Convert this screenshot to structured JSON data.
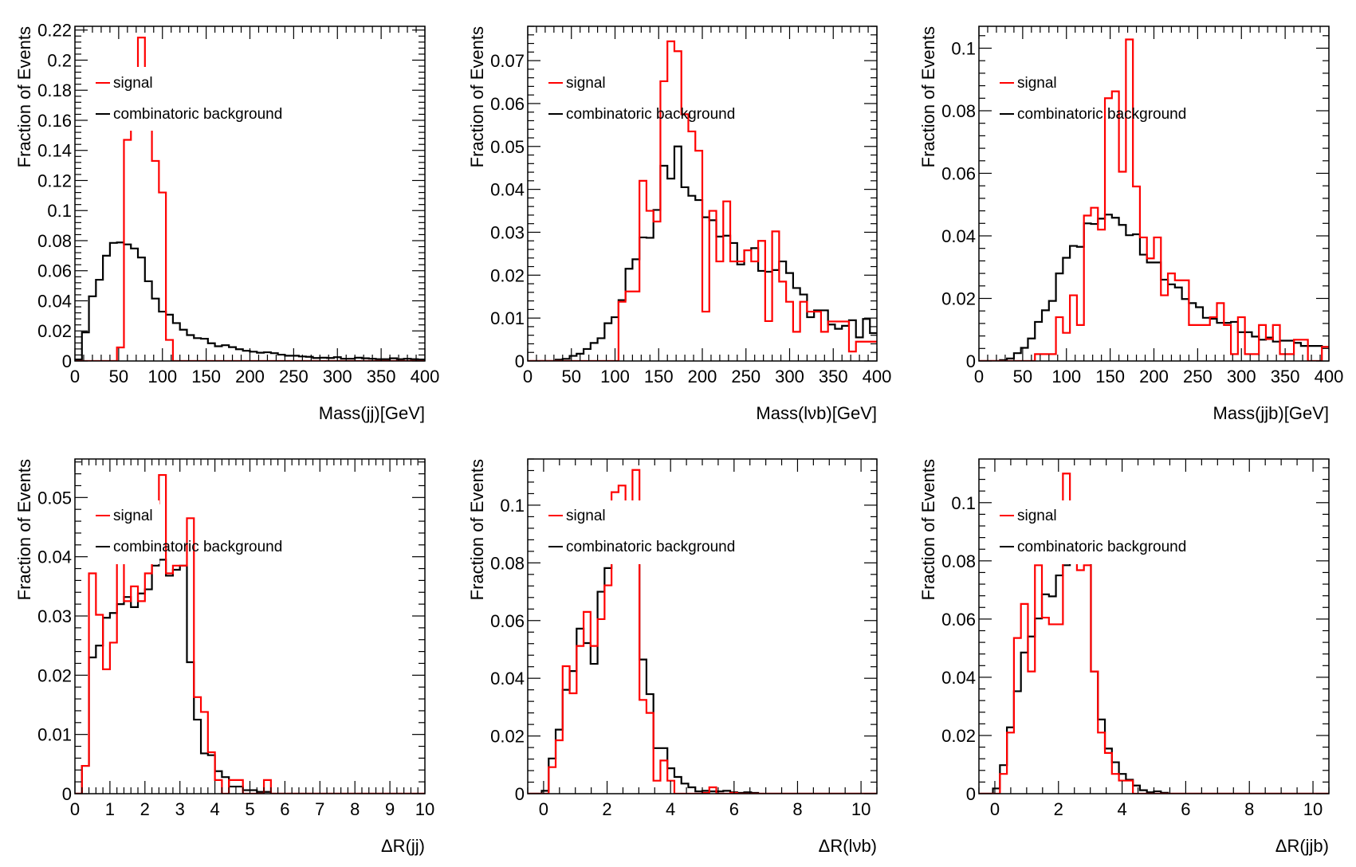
{
  "colors": {
    "signal": "#ff0000",
    "background": "#000000",
    "frame": "#000000"
  },
  "legend": {
    "signal_label": "signal",
    "background_label": "combinatoric background"
  },
  "chart_data": [
    {
      "type": "bar",
      "subtype": "step-histogram",
      "title": "",
      "xlabel": "Mass(jj)[GeV]",
      "ylabel": "Fraction of Events",
      "xlim": [
        0,
        400
      ],
      "ylim": [
        0,
        0.2225
      ],
      "bin_start": 0,
      "bin_width": 8,
      "xticks": [
        0,
        50,
        100,
        150,
        200,
        250,
        300,
        350,
        400
      ],
      "xtick_labels": [
        "0",
        "50",
        "100",
        "150",
        "200",
        "250",
        "300",
        "350",
        "400"
      ],
      "yticks": [
        0,
        0.02,
        0.04,
        0.06,
        0.08,
        0.1,
        0.12,
        0.14,
        0.16,
        0.18,
        0.2,
        0.22
      ],
      "ytick_labels": [
        "0",
        "0.02",
        "0.04",
        "0.06",
        "0.08",
        "0.1",
        "0.12",
        "0.14",
        "0.16",
        "0.18",
        "0.2",
        "0.22"
      ],
      "legend_position": "top-left",
      "grid": false,
      "series": [
        {
          "name": "combinatoric background",
          "color": "#000000",
          "values": [
            0.001,
            0.019,
            0.043,
            0.054,
            0.07,
            0.0785,
            0.0788,
            0.0775,
            0.0748,
            0.0688,
            0.053,
            0.0415,
            0.0328,
            0.0308,
            0.0252,
            0.0208,
            0.0172,
            0.0152,
            0.0148,
            0.0118,
            0.0098,
            0.0105,
            0.0092,
            0.0078,
            0.0068,
            0.0062,
            0.0055,
            0.0058,
            0.0052,
            0.0042,
            0.0035,
            0.0035,
            0.003,
            0.0028,
            0.002,
            0.0022,
            0.002,
            0.0025,
            0.0015,
            0.0015,
            0.0022,
            0.0018,
            0.0015,
            0.0012,
            0.0012,
            0.0018,
            0.0012,
            0.0015,
            0.0012,
            0.001
          ]
        },
        {
          "name": "signal",
          "color": "#ff0000",
          "values": [
            0,
            0,
            0,
            0,
            0,
            0,
            0.009,
            0.147,
            0.16,
            0.215,
            0.16,
            0.133,
            0.112,
            0.014,
            0,
            0,
            0,
            0,
            0,
            0,
            0,
            0,
            0,
            0,
            0,
            0,
            0,
            0,
            0,
            0,
            0,
            0,
            0,
            0,
            0,
            0,
            0,
            0,
            0,
            0,
            0,
            0,
            0,
            0,
            0,
            0,
            0,
            0,
            0,
            0
          ]
        }
      ]
    },
    {
      "type": "bar",
      "subtype": "step-histogram",
      "title": "",
      "xlabel": "Mass(lνb)[GeV]",
      "ylabel": "Fraction of Events",
      "xlim": [
        0,
        400
      ],
      "ylim": [
        0,
        0.078
      ],
      "bin_start": 0,
      "bin_width": 8,
      "xticks": [
        0,
        50,
        100,
        150,
        200,
        250,
        300,
        350,
        400
      ],
      "xtick_labels": [
        "0",
        "50",
        "100",
        "150",
        "200",
        "250",
        "300",
        "350",
        "400"
      ],
      "yticks": [
        0,
        0.01,
        0.02,
        0.03,
        0.04,
        0.05,
        0.06,
        0.07
      ],
      "ytick_labels": [
        "0",
        "0.01",
        "0.02",
        "0.03",
        "0.04",
        "0.05",
        "0.06",
        "0.07"
      ],
      "legend_position": "top-left",
      "grid": false,
      "series": [
        {
          "name": "combinatoric background",
          "color": "#000000",
          "values": [
            0,
            0,
            0,
            0,
            0.0003,
            0.0005,
            0.0012,
            0.0017,
            0.0028,
            0.0042,
            0.0053,
            0.0088,
            0.0102,
            0.0142,
            0.0215,
            0.0237,
            0.0288,
            0.0287,
            0.0352,
            0.0455,
            0.0425,
            0.05,
            0.0405,
            0.0385,
            0.0375,
            0.0335,
            0.0328,
            0.029,
            0.0292,
            0.0275,
            0.0225,
            0.0258,
            0.0263,
            0.021,
            0.0208,
            0.0212,
            0.0232,
            0.0205,
            0.017,
            0.0155,
            0.0102,
            0.0118,
            0.0118,
            0.0085,
            0.0075,
            0.0082,
            0.0095,
            0.0055,
            0.0098,
            0.0065
          ]
        },
        {
          "name": "signal",
          "color": "#ff0000",
          "values": [
            0,
            0,
            0,
            0,
            0,
            0,
            0,
            0,
            0,
            0,
            0,
            0,
            0,
            0.0138,
            0.0162,
            0.0162,
            0.042,
            0.035,
            0.0325,
            0.0652,
            0.0745,
            0.0722,
            0.0575,
            0.0535,
            0.049,
            0.0115,
            0.035,
            0.0232,
            0.0372,
            0.0232,
            0.0232,
            0.0258,
            0.0232,
            0.028,
            0.0093,
            0.0302,
            0.0185,
            0.0138,
            0.0068,
            0.0138,
            0.0115,
            0.0115,
            0.0068,
            0.0092,
            0.0092,
            0.0092,
            0.0022,
            0.0045,
            0.0045,
            0.0045
          ]
        }
      ]
    },
    {
      "type": "bar",
      "subtype": "step-histogram",
      "title": "",
      "xlabel": "Mass(jjb)[GeV]",
      "ylabel": "Fraction of Events",
      "xlim": [
        0,
        400
      ],
      "ylim": [
        0,
        0.107
      ],
      "bin_start": 0,
      "bin_width": 8,
      "xticks": [
        0,
        50,
        100,
        150,
        200,
        250,
        300,
        350,
        400
      ],
      "xtick_labels": [
        "0",
        "50",
        "100",
        "150",
        "200",
        "250",
        "300",
        "350",
        "400"
      ],
      "yticks": [
        0,
        0.02,
        0.04,
        0.06,
        0.08,
        0.1
      ],
      "ytick_labels": [
        "0",
        "0.02",
        "0.04",
        "0.06",
        "0.08",
        "0.1"
      ],
      "legend_position": "top-left",
      "grid": false,
      "series": [
        {
          "name": "combinatoric background",
          "color": "#000000",
          "values": [
            0,
            0,
            0,
            0.0003,
            0.0008,
            0.0025,
            0.0042,
            0.0072,
            0.0125,
            0.0162,
            0.0192,
            0.028,
            0.033,
            0.0368,
            0.0365,
            0.044,
            0.0438,
            0.0455,
            0.0468,
            0.0458,
            0.0435,
            0.0402,
            0.0405,
            0.034,
            0.0315,
            0.0315,
            0.026,
            0.0245,
            0.0235,
            0.0198,
            0.0185,
            0.0172,
            0.0138,
            0.0135,
            0.0122,
            0.0122,
            0.0125,
            0.0092,
            0.0092,
            0.0078,
            0.0068,
            0.0075,
            0.0062,
            0.0065,
            0.0065,
            0.0058,
            0.0048,
            0.0048,
            0.0048,
            0.0045
          ]
        },
        {
          "name": "signal",
          "color": "#ff0000",
          "values": [
            0,
            0,
            0,
            0,
            0,
            0,
            0,
            0,
            0.0022,
            0.0022,
            0.0022,
            0.014,
            0.009,
            0.021,
            0.0115,
            0.0465,
            0.049,
            0.042,
            0.084,
            0.0862,
            0.0605,
            0.1028,
            0.0558,
            0.0395,
            0.0328,
            0.0395,
            0.021,
            0.028,
            0.0258,
            0.0258,
            0.0115,
            0.0115,
            0.0115,
            0.014,
            0.0185,
            0.0115,
            0.0022,
            0.014,
            0.0022,
            0.0022,
            0.0115,
            0.007,
            0.0115,
            0.0022,
            0.0022,
            0.0068,
            0.0068,
            0,
            0,
            0.0045
          ]
        }
      ]
    },
    {
      "type": "bar",
      "subtype": "step-histogram",
      "title": "",
      "xlabel": "ΔR(jj)",
      "ylabel": "Fraction of Events",
      "xlim": [
        0,
        10
      ],
      "ylim": [
        0,
        0.0565
      ],
      "bin_start": 0,
      "bin_width": 0.2,
      "xticks": [
        0,
        1,
        2,
        3,
        4,
        5,
        6,
        7,
        8,
        9,
        10
      ],
      "xtick_labels": [
        "0",
        "1",
        "2",
        "3",
        "4",
        "5",
        "6",
        "7",
        "8",
        "9",
        "10"
      ],
      "yticks": [
        0,
        0.01,
        0.02,
        0.03,
        0.04,
        0.05
      ],
      "ytick_labels": [
        "0",
        "0.01",
        "0.02",
        "0.03",
        "0.04",
        "0.05"
      ],
      "legend_position": "top-left",
      "grid": false,
      "series": [
        {
          "name": "combinatoric background",
          "color": "#000000",
          "values": [
            0,
            0.0047,
            0.023,
            0.025,
            0.0297,
            0.0305,
            0.032,
            0.0332,
            0.0315,
            0.0338,
            0.0345,
            0.0385,
            0.0395,
            0.0368,
            0.0378,
            0.0385,
            0.0222,
            0.0125,
            0.0068,
            0.0065,
            0.0038,
            0.0028,
            0.0012,
            0.0012,
            0.0006,
            0.0006,
            0.0003,
            0.0003,
            0,
            0,
            0,
            0,
            0,
            0,
            0,
            0,
            0,
            0,
            0,
            0,
            0,
            0,
            0,
            0,
            0,
            0,
            0,
            0,
            0,
            0
          ]
        },
        {
          "name": "signal",
          "color": "#ff0000",
          "values": [
            0,
            0.0047,
            0.0372,
            0.0302,
            0.021,
            0.0255,
            0.0475,
            0.0325,
            0.035,
            0.0325,
            0.0372,
            0.049,
            0.0538,
            0.0372,
            0.0385,
            0.0385,
            0.0465,
            0.0163,
            0.0138,
            0.007,
            0.0023,
            0,
            0.0023,
            0.0023,
            0,
            0,
            0,
            0.0023,
            0,
            0,
            0,
            0,
            0,
            0,
            0,
            0,
            0,
            0,
            0,
            0,
            0,
            0,
            0,
            0,
            0,
            0,
            0,
            0,
            0,
            0
          ]
        }
      ]
    },
    {
      "type": "bar",
      "subtype": "step-histogram",
      "title": "",
      "xlabel": "ΔR(lνb)",
      "ylabel": "Fraction of Events",
      "xlim": [
        -0.5,
        10.5
      ],
      "ylim": [
        0,
        0.116
      ],
      "bin_start": -0.5,
      "bin_width": 0.22,
      "xticks": [
        0,
        2,
        4,
        6,
        8,
        10
      ],
      "xtick_labels": [
        "0",
        "2",
        "4",
        "6",
        "8",
        "10"
      ],
      "yticks": [
        0,
        0.02,
        0.04,
        0.06,
        0.08,
        0.1
      ],
      "ytick_labels": [
        "0",
        "0.02",
        "0.04",
        "0.06",
        "0.08",
        "0.1"
      ],
      "legend_position": "top-left",
      "grid": false,
      "series": [
        {
          "name": "combinatoric background",
          "color": "#000000",
          "values": [
            0,
            0,
            0.001,
            0.0122,
            0.0222,
            0.036,
            0.0425,
            0.0572,
            0.0522,
            0.045,
            0.07,
            0.0782,
            0.0802,
            0.085,
            0.0828,
            0.0965,
            0.0465,
            0.0345,
            0.0158,
            0.0158,
            0.0088,
            0.0058,
            0.0035,
            0.0022,
            0.0008,
            0.001,
            0.0008,
            0.0008,
            0.001,
            0.0005,
            0.0003,
            0.0005,
            0.0003,
            0,
            0,
            0,
            0,
            0,
            0,
            0,
            0,
            0,
            0,
            0,
            0,
            0,
            0,
            0,
            0,
            0
          ]
        },
        {
          "name": "signal",
          "color": "#ff0000",
          "values": [
            0,
            0,
            0,
            0.0092,
            0.0185,
            0.0442,
            0.0348,
            0.0512,
            0.063,
            0.0512,
            0.0605,
            0.0722,
            0.1045,
            0.1068,
            0.0862,
            0.1122,
            0.0325,
            0.028,
            0.0045,
            0.0115,
            0.0045,
            0,
            0,
            0,
            0,
            0.0003,
            0.0022,
            0,
            0,
            0.0003,
            0,
            0,
            0,
            0,
            0,
            0,
            0,
            0,
            0,
            0,
            0,
            0,
            0,
            0,
            0,
            0,
            0,
            0,
            0,
            0
          ]
        }
      ]
    },
    {
      "type": "bar",
      "subtype": "step-histogram",
      "title": "",
      "xlabel": "ΔR(jjb)",
      "ylabel": "Fraction of Events",
      "xlim": [
        -0.5,
        10.5
      ],
      "ylim": [
        0,
        0.115
      ],
      "bin_start": -0.5,
      "bin_width": 0.22,
      "xticks": [
        0,
        2,
        4,
        6,
        8,
        10
      ],
      "xtick_labels": [
        "0",
        "2",
        "4",
        "6",
        "8",
        "10"
      ],
      "yticks": [
        0,
        0.02,
        0.04,
        0.06,
        0.08,
        0.1
      ],
      "ytick_labels": [
        "0",
        "0.02",
        "0.04",
        "0.06",
        "0.08",
        "0.1"
      ],
      "legend_position": "top-left",
      "grid": false,
      "series": [
        {
          "name": "combinatoric background",
          "color": "#000000",
          "values": [
            0,
            0,
            0.0018,
            0.0098,
            0.0228,
            0.0352,
            0.0485,
            0.054,
            0.0602,
            0.0685,
            0.0678,
            0.075,
            0.0785,
            0.085,
            0.1,
            0.083,
            0.042,
            0.0255,
            0.0155,
            0.0108,
            0.0068,
            0.0048,
            0.0028,
            0.0012,
            0.0005,
            0.0008,
            0.0003,
            0,
            0,
            0,
            0,
            0,
            0,
            0,
            0,
            0,
            0,
            0,
            0,
            0,
            0,
            0,
            0,
            0,
            0,
            0,
            0,
            0,
            0,
            0
          ]
        },
        {
          "name": "signal",
          "color": "#ff0000",
          "values": [
            0,
            0,
            0,
            0.0068,
            0.021,
            0.0535,
            0.0652,
            0.042,
            0.0785,
            0.0605,
            0.0582,
            0.0582,
            0.11,
            0.0862,
            0.0768,
            0.0785,
            0.042,
            0.021,
            0.014,
            0.0068,
            0.0045,
            0.0045,
            0,
            0,
            0,
            0,
            0,
            0,
            0,
            0,
            0,
            0,
            0,
            0,
            0,
            0,
            0,
            0,
            0,
            0,
            0,
            0,
            0,
            0,
            0,
            0,
            0,
            0,
            0,
            0
          ]
        }
      ]
    }
  ]
}
